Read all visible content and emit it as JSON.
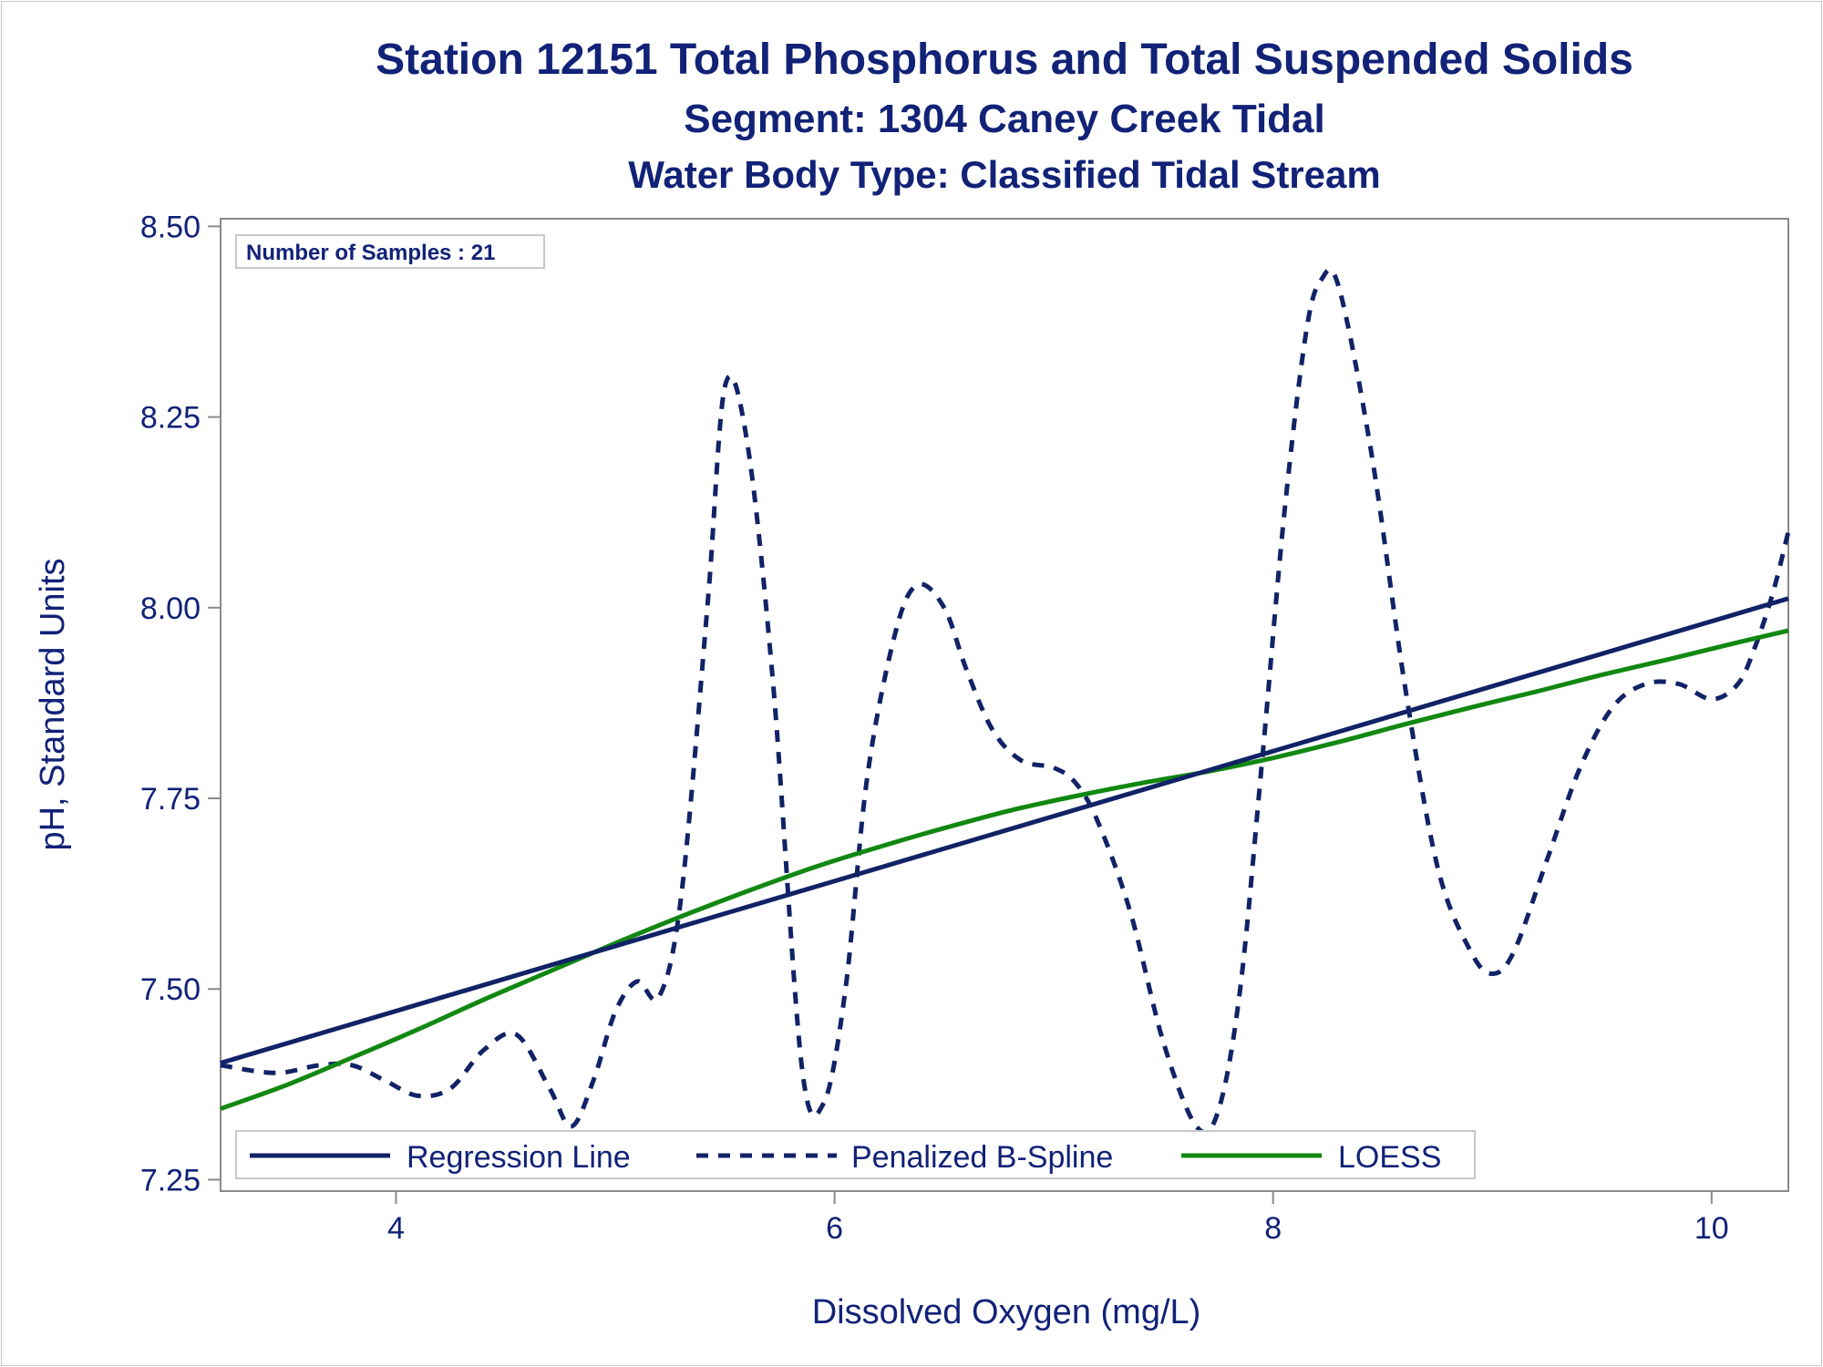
{
  "chart_data": {
    "type": "line",
    "title": "Station 12151  Total Phosphorus and Total Suspended Solids",
    "subtitle": "Segment: 1304  Caney Creek Tidal",
    "subtitle2": "Water Body Type: Classified Tidal Stream",
    "xlabel": "Dissolved Oxygen (mg/L)",
    "ylabel": "pH, Standard Units",
    "xlim": [
      3.2,
      10.35
    ],
    "ylim": [
      7.235,
      8.51
    ],
    "xticks": [
      4,
      6,
      8,
      10
    ],
    "xtick_labels": [
      "4",
      "6",
      "8",
      "10"
    ],
    "yticks": [
      7.25,
      7.5,
      7.75,
      8.0,
      8.25,
      8.5
    ],
    "ytick_labels": [
      "7.25",
      "7.50",
      "7.75",
      "8.00",
      "8.25",
      "8.50"
    ],
    "grid": false,
    "legend_position": "bottom-inside",
    "inset_text": "Number of Samples : 21",
    "series": [
      {
        "name": "Regression Line",
        "style": "solid",
        "color": "#112266",
        "x": [
          3.2,
          10.35
        ],
        "y": [
          7.403,
          8.012
        ]
      },
      {
        "name": "Penalized B-Spline",
        "style": "dashed",
        "color": "#112266",
        "x": [
          3.2,
          3.45,
          3.65,
          3.8,
          3.95,
          4.1,
          4.25,
          4.4,
          4.55,
          4.7,
          4.8,
          4.9,
          5.0,
          5.1,
          5.2,
          5.3,
          5.42,
          5.5,
          5.6,
          5.72,
          5.85,
          5.95,
          6.05,
          6.15,
          6.28,
          6.38,
          6.5,
          6.6,
          6.72,
          6.85,
          7.0,
          7.1,
          7.2,
          7.35,
          7.5,
          7.65,
          7.75,
          7.85,
          7.95,
          8.05,
          8.15,
          8.22,
          8.3,
          8.45,
          8.6,
          8.75,
          8.9,
          9.0,
          9.1,
          9.25,
          9.4,
          9.55,
          9.7,
          9.85,
          10.0,
          10.12,
          10.2,
          10.28,
          10.35
        ],
        "y": [
          7.4,
          7.39,
          7.4,
          7.4,
          7.38,
          7.36,
          7.37,
          7.42,
          7.44,
          7.37,
          7.32,
          7.38,
          7.47,
          7.51,
          7.49,
          7.62,
          8.0,
          8.29,
          8.22,
          7.9,
          7.4,
          7.35,
          7.5,
          7.78,
          7.97,
          8.03,
          8.0,
          7.92,
          7.84,
          7.8,
          7.79,
          7.77,
          7.72,
          7.6,
          7.43,
          7.32,
          7.34,
          7.5,
          7.8,
          8.12,
          8.36,
          8.43,
          8.42,
          8.2,
          7.9,
          7.66,
          7.55,
          7.52,
          7.55,
          7.67,
          7.79,
          7.87,
          7.9,
          7.9,
          7.88,
          7.9,
          7.95,
          8.02,
          8.1
        ]
      },
      {
        "name": "LOESS",
        "style": "solid",
        "color": "#118811",
        "x": [
          3.2,
          3.5,
          3.8,
          4.1,
          4.4,
          4.7,
          5.0,
          5.3,
          5.6,
          5.9,
          6.2,
          6.5,
          6.8,
          7.1,
          7.4,
          7.7,
          8.0,
          8.3,
          8.6,
          8.9,
          9.2,
          9.5,
          9.8,
          10.1,
          10.35
        ],
        "y": [
          7.343,
          7.374,
          7.41,
          7.447,
          7.486,
          7.523,
          7.56,
          7.595,
          7.628,
          7.659,
          7.686,
          7.711,
          7.734,
          7.753,
          7.77,
          7.785,
          7.803,
          7.824,
          7.847,
          7.869,
          7.89,
          7.912,
          7.932,
          7.953,
          7.97
        ]
      }
    ]
  }
}
